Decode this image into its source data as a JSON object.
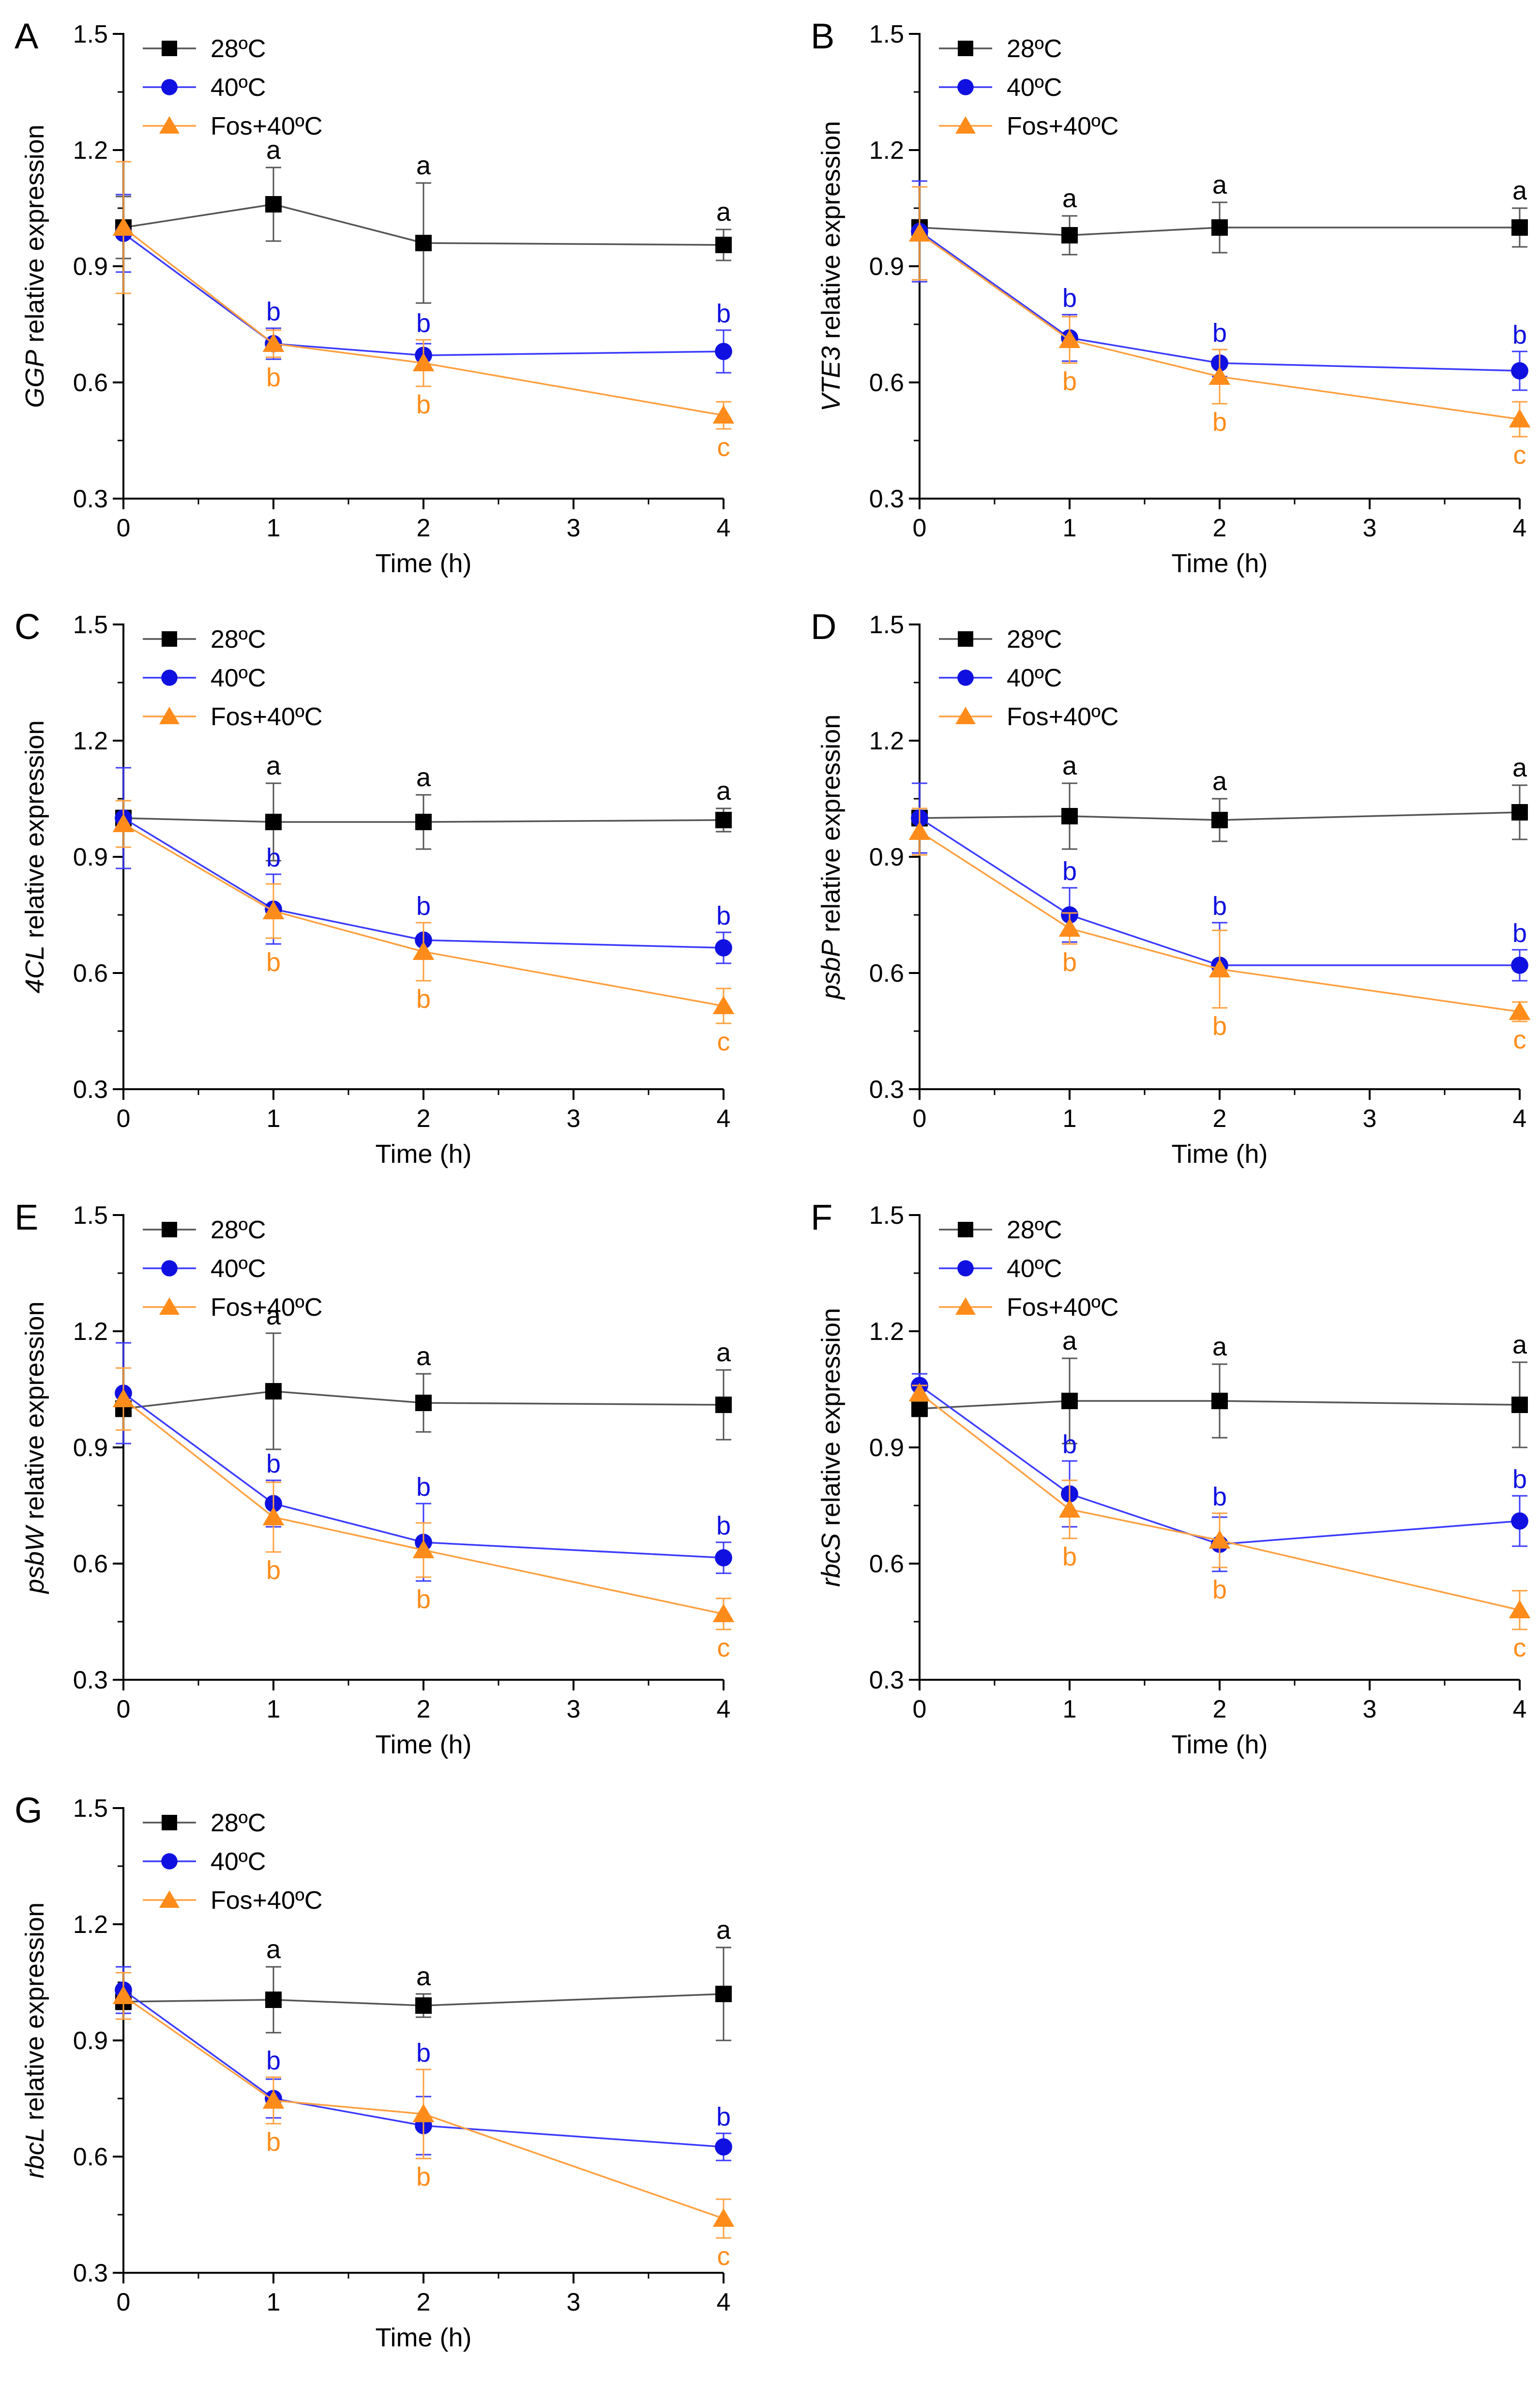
{
  "figure": {
    "shared": {
      "xlabel": "Time (h)",
      "x_ticks": [
        0,
        1,
        2,
        3,
        4
      ],
      "x_tick_labels": [
        "0",
        "1",
        "2",
        "3",
        "4"
      ],
      "xlim": [
        0,
        4
      ],
      "ylim": [
        0.3,
        1.5
      ],
      "y_ticks": [
        0.3,
        0.6,
        0.9,
        1.2,
        1.5
      ],
      "y_tick_labels": [
        "0.3",
        "0.6",
        "0.9",
        "1.2",
        "1.5"
      ],
      "ylabel_suffix": " relative expression",
      "legend": [
        {
          "name": "28ºC",
          "marker": "square",
          "color": "#000000"
        },
        {
          "name": "40ºC",
          "marker": "circle",
          "color": "#1010e0"
        },
        {
          "name": "Fos+40ºC",
          "marker": "triangle",
          "color": "#ff8c1a"
        }
      ],
      "series_colors": {
        "black": "#000000",
        "blue": "#1010e0",
        "orange": "#ff8c1a",
        "line_black": "#555555",
        "line_blue": "#3b3bff",
        "line_orange": "#ffa040"
      }
    }
  },
  "chart_data": [
    {
      "type": "line",
      "panel_letter": "A",
      "gene": "GGP",
      "ylabel": "GGP relative expression",
      "xlabel": "Time (h)",
      "x": [
        0,
        1,
        2,
        4
      ],
      "xlim": [
        0,
        4
      ],
      "ylim": [
        0.3,
        1.5
      ],
      "legend_position": "top-left",
      "series": [
        {
          "name": "28ºC",
          "values": [
            1.0,
            1.06,
            0.96,
            0.955
          ],
          "errors": [
            0.08,
            0.095,
            0.155,
            0.04
          ],
          "letters": [
            "",
            "a",
            "a",
            "a"
          ]
        },
        {
          "name": "40ºC",
          "values": [
            0.985,
            0.7,
            0.67,
            0.68
          ],
          "errors": [
            0.1,
            0.04,
            0.03,
            0.055
          ],
          "letters": [
            "",
            "b",
            "b",
            "b"
          ]
        },
        {
          "name": "Fos+40ºC",
          "values": [
            1.0,
            0.7,
            0.65,
            0.515
          ],
          "errors": [
            0.17,
            0.035,
            0.06,
            0.035
          ],
          "letters": [
            "",
            "b",
            "b",
            "c"
          ]
        }
      ]
    },
    {
      "type": "line",
      "panel_letter": "B",
      "gene": "VTE3",
      "ylabel": "VTE3 relative expression",
      "xlabel": "Time (h)",
      "x": [
        0,
        1,
        2,
        4
      ],
      "xlim": [
        0,
        4
      ],
      "ylim": [
        0.3,
        1.5
      ],
      "legend_position": "top-left",
      "series": [
        {
          "name": "28ºC",
          "values": [
            1.0,
            0.98,
            1.0,
            1.0
          ],
          "errors": [
            0.02,
            0.05,
            0.065,
            0.05
          ],
          "letters": [
            "",
            "a",
            "a",
            "a"
          ]
        },
        {
          "name": "40ºC",
          "values": [
            0.99,
            0.715,
            0.65,
            0.63
          ],
          "errors": [
            0.13,
            0.06,
            0.035,
            0.05
          ],
          "letters": [
            "",
            "b",
            "b",
            "b"
          ]
        },
        {
          "name": "Fos+40ºC",
          "values": [
            0.985,
            0.71,
            0.615,
            0.505
          ],
          "errors": [
            0.12,
            0.06,
            0.07,
            0.045
          ],
          "letters": [
            "",
            "b",
            "b",
            "c"
          ]
        }
      ]
    },
    {
      "type": "line",
      "panel_letter": "C",
      "gene": "4CL",
      "ylabel": "4CL relative expression",
      "xlabel": "Time (h)",
      "x": [
        0,
        1,
        2,
        4
      ],
      "xlim": [
        0,
        4
      ],
      "ylim": [
        0.3,
        1.5
      ],
      "legend_position": "top-left",
      "series": [
        {
          "name": "28ºC",
          "values": [
            1.0,
            0.99,
            0.99,
            0.995
          ],
          "errors": [
            0.02,
            0.1,
            0.07,
            0.03
          ],
          "letters": [
            "",
            "a",
            "a",
            "a"
          ]
        },
        {
          "name": "40ºC",
          "values": [
            1.0,
            0.765,
            0.685,
            0.665
          ],
          "errors": [
            0.13,
            0.09,
            0.045,
            0.04
          ],
          "letters": [
            "",
            "b",
            "b",
            "b"
          ]
        },
        {
          "name": "Fos+40ºC",
          "values": [
            0.985,
            0.76,
            0.655,
            0.515
          ],
          "errors": [
            0.06,
            0.07,
            0.075,
            0.045
          ],
          "letters": [
            "",
            "b",
            "b",
            "c"
          ]
        }
      ]
    },
    {
      "type": "line",
      "panel_letter": "D",
      "gene": "psbP",
      "ylabel": "psbP relative expression",
      "xlabel": "Time (h)",
      "x": [
        0,
        1,
        2,
        4
      ],
      "xlim": [
        0,
        4
      ],
      "ylim": [
        0.3,
        1.5
      ],
      "legend_position": "top-left",
      "series": [
        {
          "name": "28ºC",
          "values": [
            1.0,
            1.005,
            0.995,
            1.015
          ],
          "errors": [
            0.02,
            0.085,
            0.055,
            0.07
          ],
          "letters": [
            "",
            "a",
            "a",
            "a"
          ]
        },
        {
          "name": "40ºC",
          "values": [
            1.0,
            0.75,
            0.62,
            0.62
          ],
          "errors": [
            0.09,
            0.07,
            0.11,
            0.04
          ],
          "letters": [
            "",
            "b",
            "b",
            "b"
          ]
        },
        {
          "name": "Fos+40ºC",
          "values": [
            0.965,
            0.715,
            0.61,
            0.5
          ],
          "errors": [
            0.06,
            0.04,
            0.1,
            0.025
          ],
          "letters": [
            "",
            "b",
            "b",
            "c"
          ]
        }
      ]
    },
    {
      "type": "line",
      "panel_letter": "E",
      "gene": "psbW",
      "ylabel": "psbW relative expression",
      "xlabel": "Time (h)",
      "x": [
        0,
        1,
        2,
        4
      ],
      "xlim": [
        0,
        4
      ],
      "ylim": [
        0.3,
        1.5
      ],
      "legend_position": "top-left",
      "series": [
        {
          "name": "28ºC",
          "values": [
            1.0,
            1.045,
            1.015,
            1.01
          ],
          "errors": [
            0.02,
            0.15,
            0.075,
            0.09
          ],
          "letters": [
            "",
            "a",
            "a",
            "a"
          ]
        },
        {
          "name": "40ºC",
          "values": [
            1.04,
            0.755,
            0.655,
            0.615
          ],
          "errors": [
            0.13,
            0.06,
            0.1,
            0.04
          ],
          "letters": [
            "",
            "b",
            "b",
            "b"
          ]
        },
        {
          "name": "Fos+40ºC",
          "values": [
            1.025,
            0.72,
            0.635,
            0.47
          ],
          "errors": [
            0.08,
            0.09,
            0.07,
            0.04
          ],
          "letters": [
            "",
            "b",
            "b",
            "c"
          ]
        }
      ]
    },
    {
      "type": "line",
      "panel_letter": "F",
      "gene": "rbcS",
      "ylabel": "rbcS relative expression",
      "xlabel": "Time (h)",
      "x": [
        0,
        1,
        2,
        4
      ],
      "xlim": [
        0,
        4
      ],
      "ylim": [
        0.3,
        1.5
      ],
      "legend_position": "top-left",
      "series": [
        {
          "name": "28ºC",
          "values": [
            1.0,
            1.02,
            1.02,
            1.01
          ],
          "errors": [
            0.02,
            0.11,
            0.095,
            0.11
          ],
          "letters": [
            "",
            "a",
            "a",
            "a"
          ]
        },
        {
          "name": "40ºC",
          "values": [
            1.06,
            0.78,
            0.65,
            0.71
          ],
          "errors": [
            0.03,
            0.085,
            0.07,
            0.065
          ],
          "letters": [
            "",
            "b",
            "b",
            "b"
          ]
        },
        {
          "name": "Fos+40ºC",
          "values": [
            1.04,
            0.74,
            0.66,
            0.48
          ],
          "errors": [
            0.02,
            0.075,
            0.07,
            0.05
          ],
          "letters": [
            "",
            "b",
            "b",
            "c"
          ]
        }
      ]
    },
    {
      "type": "line",
      "panel_letter": "G",
      "gene": "rbcL",
      "ylabel": "rbcL relative expression",
      "xlabel": "Time (h)",
      "x": [
        0,
        1,
        2,
        4
      ],
      "xlim": [
        0,
        4
      ],
      "ylim": [
        0.3,
        1.5
      ],
      "legend_position": "top-left",
      "series": [
        {
          "name": "28ºC",
          "values": [
            1.0,
            1.005,
            0.99,
            1.02
          ],
          "errors": [
            0.02,
            0.085,
            0.03,
            0.12
          ],
          "letters": [
            "",
            "a",
            "a",
            "a"
          ]
        },
        {
          "name": "40ºC",
          "values": [
            1.03,
            0.75,
            0.68,
            0.625
          ],
          "errors": [
            0.06,
            0.05,
            0.075,
            0.035
          ],
          "letters": [
            "",
            "b",
            "b",
            "b"
          ]
        },
        {
          "name": "Fos+40ºC",
          "values": [
            1.015,
            0.745,
            0.71,
            0.44
          ],
          "errors": [
            0.06,
            0.06,
            0.115,
            0.05
          ],
          "letters": [
            "",
            "b",
            "b",
            "c"
          ]
        }
      ]
    }
  ]
}
